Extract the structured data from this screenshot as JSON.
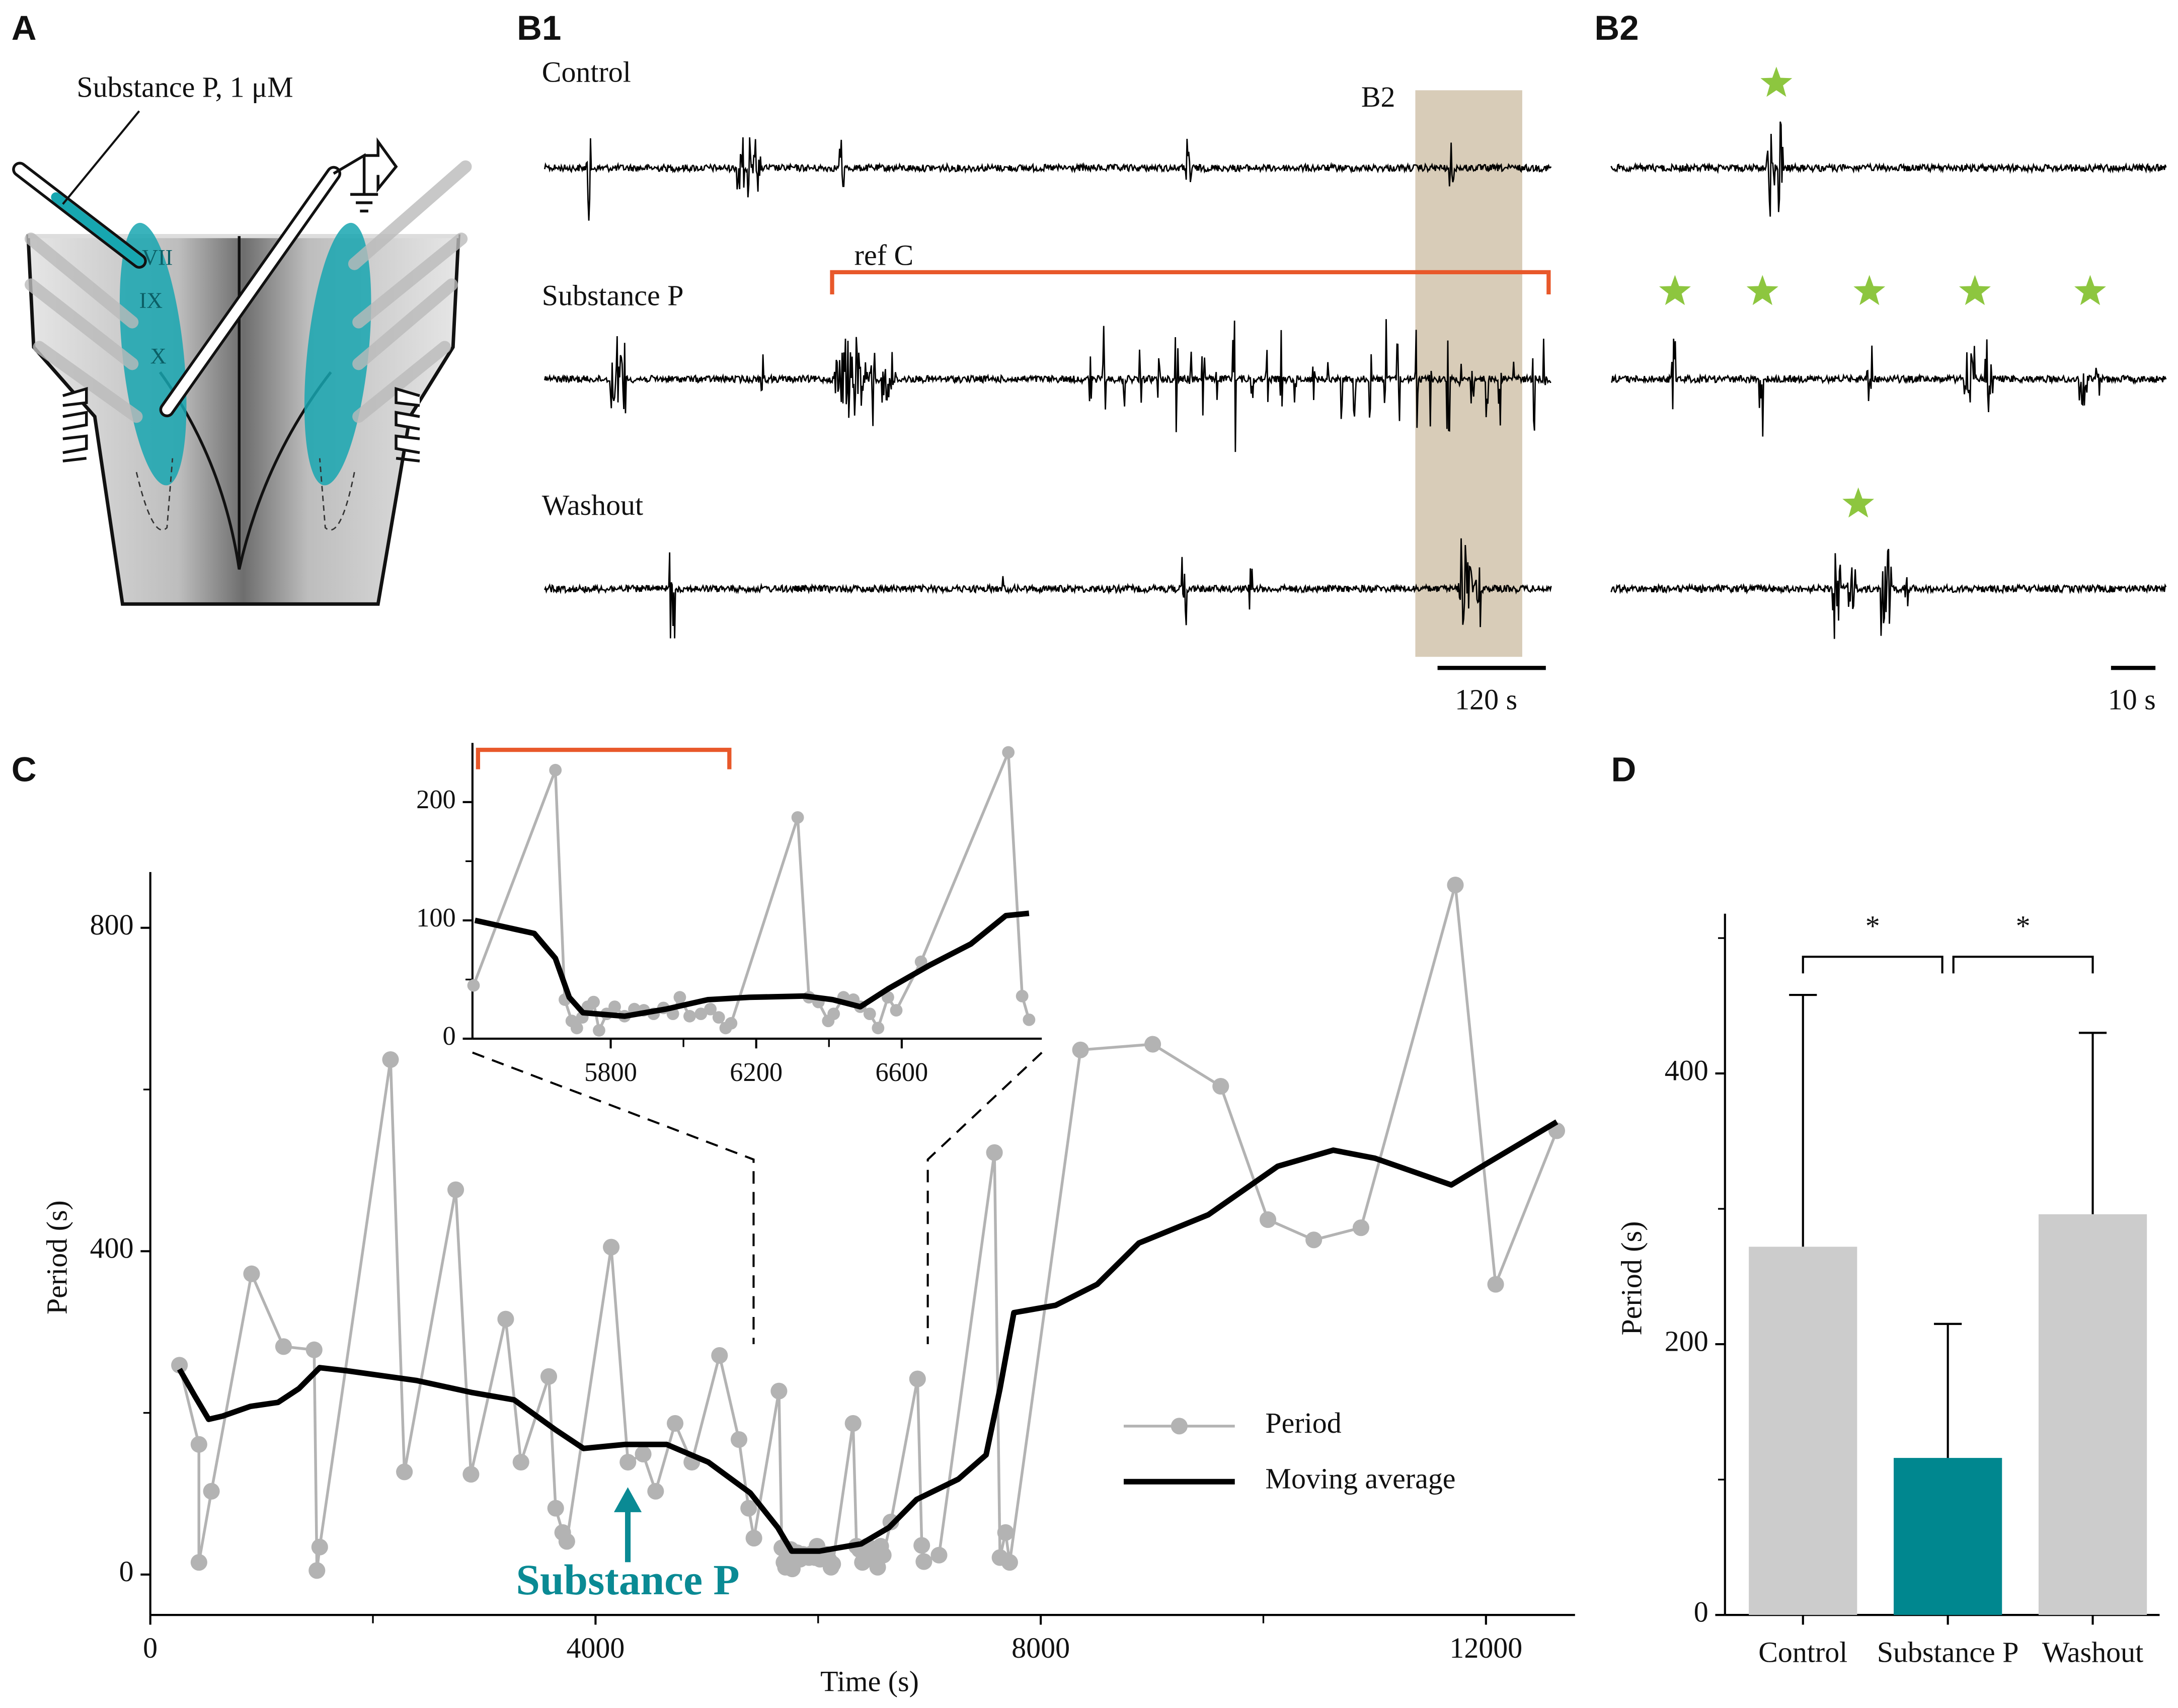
{
  "figure": {
    "A": {
      "label": "A",
      "drug": "Substance P, 1 μM",
      "nuclei": [
        "VII",
        "IX",
        "X"
      ]
    },
    "B1": {
      "label": "B1",
      "rows": [
        "Control",
        "Substance P",
        "Washout"
      ],
      "window": "B2",
      "bracket": "ref C",
      "scalebar": "120 s"
    },
    "B2": {
      "label": "B2",
      "scalebar": "10 s"
    },
    "C": {
      "label": "C"
    },
    "D": {
      "label": "D"
    }
  },
  "chart_data": [
    {
      "type": "line",
      "xlabel": "Time (s)",
      "ylabel": "Period (s)",
      "xlim": [
        0,
        12800
      ],
      "ylim": [
        -50,
        869
      ],
      "xticks": [
        0,
        4000,
        8000,
        12000
      ],
      "xminor": [
        2000,
        6000,
        10000
      ],
      "yticks": [
        0,
        400,
        800
      ],
      "yminor": [
        200,
        600
      ],
      "legend": "lower right",
      "series": [
        {
          "name": "Period",
          "color": "#b3b3b3",
          "markers": true,
          "x": [
            262,
            437,
            437,
            549,
            910,
            1197,
            1472,
            1497,
            1522,
            2158,
            2283,
            2744,
            2881,
            3193,
            3330,
            3580,
            3642,
            3705,
            3742,
            4141,
            4291,
            4428,
            4540,
            4715,
            4865,
            5114,
            5289,
            5376,
            5423,
            5648,
            5674,
            5693,
            5707,
            5722,
            5737,
            5753,
            5768,
            5789,
            5811,
            5838,
            5865,
            5891,
            5918,
            5945,
            5971,
            5990,
            6017,
            6048,
            6074,
            6097,
            6116,
            6131,
            6314,
            6345,
            6371,
            6398,
            6413,
            6440,
            6467,
            6486,
            6512,
            6535,
            6562,
            6585,
            6653,
            6893,
            6931,
            6950,
            7086,
            7584,
            7634,
            7684,
            7721,
            8357,
            9006,
            9617,
            10041,
            10453,
            10877,
            11725,
            12087,
            12636
          ],
          "values": [
            259,
            161,
            15,
            103,
            372,
            282,
            278,
            5,
            34,
            637,
            127,
            476,
            124,
            316,
            139,
            245,
            82,
            52,
            41,
            405,
            139,
            149,
            103,
            187,
            139,
            271,
            167,
            82,
            45,
            227,
            33,
            15,
            9,
            18,
            27,
            31,
            7,
            21,
            27,
            19,
            25,
            24,
            21,
            26,
            21,
            35,
            19,
            21,
            25,
            18,
            9,
            13,
            187,
            35,
            31,
            15,
            21,
            35,
            33,
            27,
            21,
            9,
            35,
            24,
            65,
            242,
            36,
            16,
            24,
            522,
            21,
            52,
            15,
            649,
            656,
            604,
            439,
            414,
            429,
            853,
            359,
            549
          ]
        },
        {
          "name": "Moving average",
          "color": "#000000",
          "x": [
            262,
            399,
            524,
            649,
            898,
            1148,
            1335,
            1522,
            1771,
            2395,
            2894,
            3268,
            3642,
            3892,
            4266,
            4640,
            5014,
            5389,
            5638,
            5763,
            6012,
            6386,
            6636,
            6885,
            7260,
            7509,
            7634,
            7759,
            8133,
            8507,
            8881,
            9505,
            10129,
            10628,
            11002,
            11688,
            12000,
            12636
          ],
          "values": [
            254,
            221,
            192,
            196,
            208,
            213,
            230,
            256,
            252,
            240,
            225,
            216,
            179,
            156,
            161,
            161,
            139,
            101,
            58,
            29,
            29,
            38,
            58,
            93,
            118,
            148,
            230,
            324,
            333,
            359,
            410,
            445,
            505,
            525,
            515,
            482,
            508,
            560
          ]
        }
      ],
      "annotations": [
        {
          "text": "Substance P",
          "x": 4290,
          "color": "#0a8a94"
        }
      ]
    },
    {
      "type": "line",
      "xlim": [
        5420,
        6985
      ],
      "ylim": [
        0,
        250
      ],
      "xticks": [
        5800,
        6200,
        6600
      ],
      "xminor": [
        6000,
        6400
      ],
      "yticks": [
        0,
        100,
        200
      ],
      "yminor": [
        50,
        150
      ],
      "series": [
        {
          "color": "#b3b3b3",
          "markers": true,
          "x": [
            5423,
            5648,
            5674,
            5693,
            5707,
            5722,
            5737,
            5753,
            5768,
            5789,
            5811,
            5838,
            5865,
            5891,
            5918,
            5945,
            5971,
            5990,
            6017,
            6048,
            6074,
            6097,
            6116,
            6131,
            6314,
            6345,
            6371,
            6398,
            6413,
            6440,
            6467,
            6486,
            6512,
            6535,
            6562,
            6585,
            6653,
            6893,
            6931,
            6950
          ],
          "values": [
            45,
            227,
            33,
            15,
            9,
            18,
            27,
            31,
            7,
            21,
            27,
            19,
            25,
            24,
            21,
            26,
            21,
            35,
            19,
            21,
            25,
            18,
            9,
            13,
            187,
            35,
            31,
            15,
            21,
            35,
            33,
            27,
            21,
            9,
            35,
            24,
            65,
            242,
            36,
            16
          ]
        },
        {
          "color": "#000000",
          "x": [
            5427,
            5590,
            5648,
            5686,
            5724,
            5838,
            5952,
            6067,
            6181,
            6333,
            6410,
            6486,
            6562,
            6676,
            6790,
            6886,
            6950
          ],
          "values": [
            100,
            89,
            68,
            35,
            22,
            19,
            25,
            33,
            35,
            36,
            33,
            27,
            42,
            62,
            80,
            104,
            106
          ]
        }
      ]
    },
    {
      "type": "bar",
      "ylabel": "Period (s)",
      "categories": [
        "Control",
        "Substance P",
        "Washout"
      ],
      "values": [
        272,
        116,
        296
      ],
      "errors": [
        186,
        99,
        134
      ],
      "colors": [
        "#cccccc",
        "#00878f",
        "#cccccc"
      ],
      "ylim": [
        0,
        518
      ],
      "yticks": [
        0,
        200,
        400
      ],
      "yminor": [
        100,
        300,
        500
      ],
      "significance": [
        {
          "pair": [
            0,
            1
          ],
          "label": "*"
        },
        {
          "pair": [
            1,
            2
          ],
          "label": "*"
        }
      ]
    }
  ]
}
